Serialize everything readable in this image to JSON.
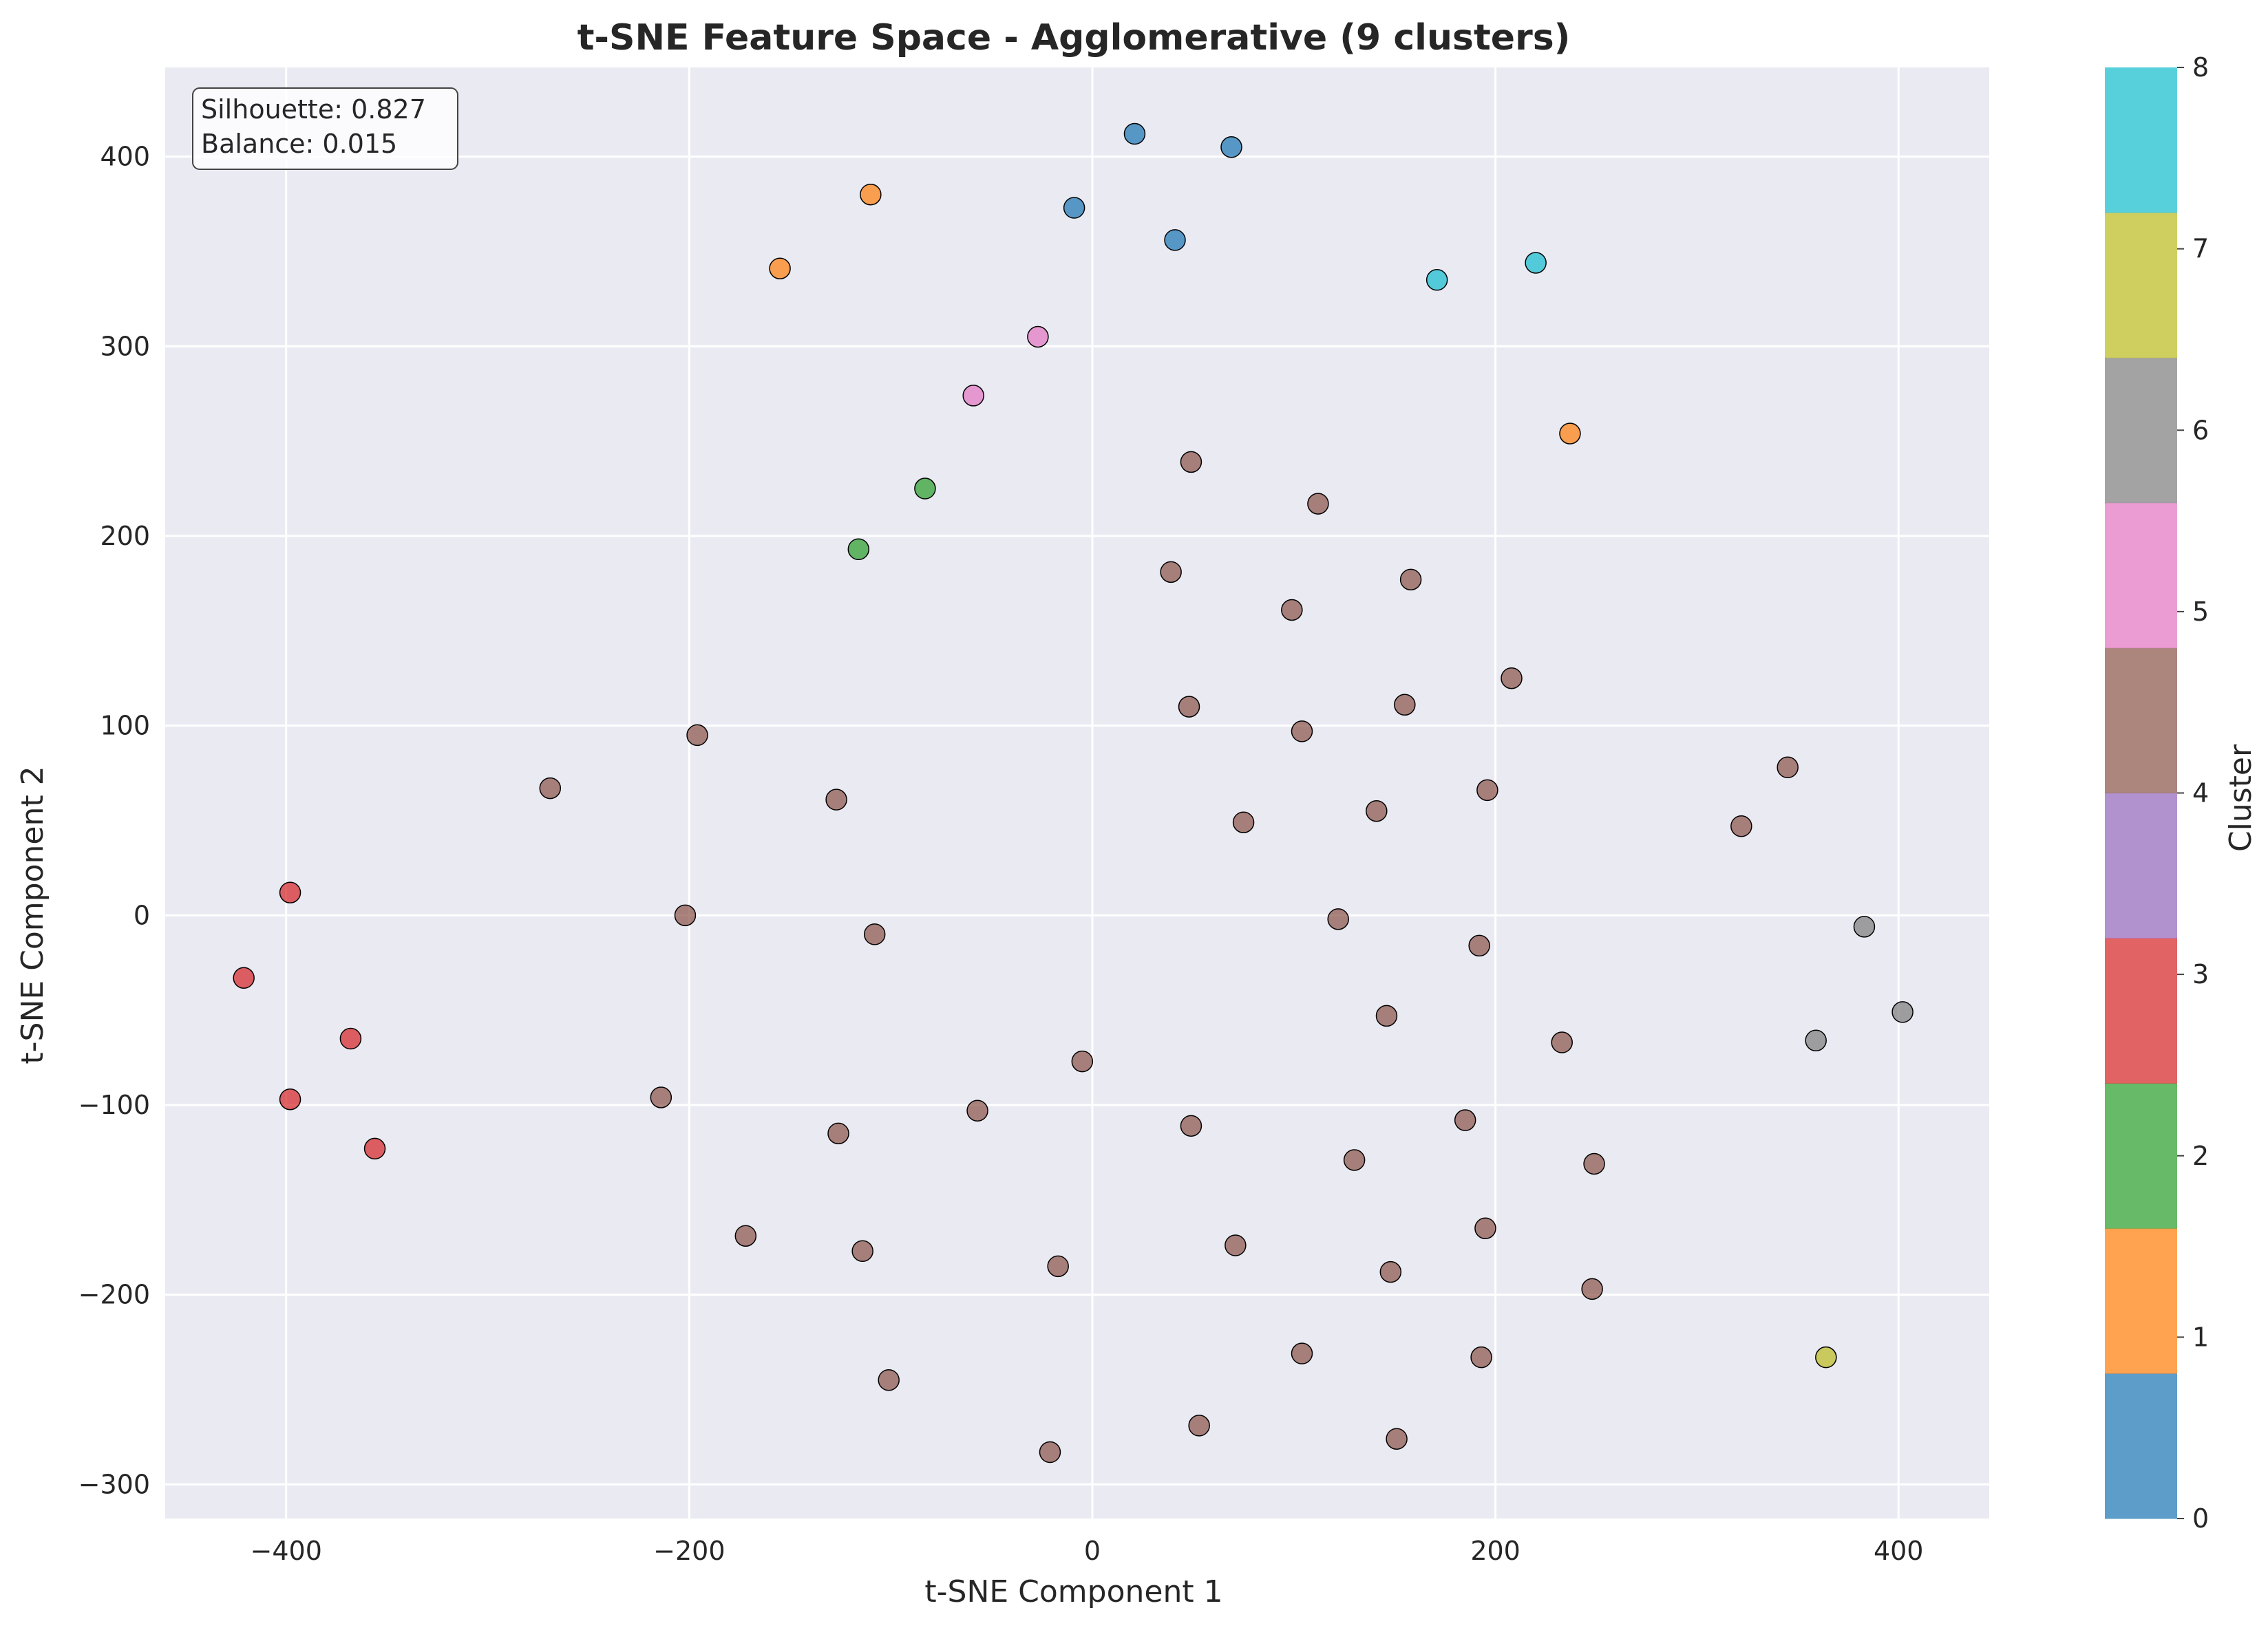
{
  "chart_data": {
    "type": "scatter",
    "title": "t-SNE Feature Space - Agglomerative (9 clusters)",
    "xlabel": "t-SNE Component 1",
    "ylabel": "t-SNE Component 2",
    "xlim": [
      -460,
      445
    ],
    "ylim": [
      -318,
      447
    ],
    "x_ticks": [
      -400,
      -200,
      0,
      200,
      400
    ],
    "y_ticks": [
      -300,
      -200,
      -100,
      0,
      100,
      200,
      300,
      400
    ],
    "grid": true,
    "annotation_lines": [
      "Silhouette: 0.827",
      "Balance: 0.015"
    ],
    "colorbar": {
      "label": "Cluster",
      "ticks": [
        0,
        1,
        2,
        3,
        4,
        5,
        6,
        7,
        8
      ],
      "colors": [
        "#1f77b4",
        "#ff7f0e",
        "#2ca02c",
        "#d62728",
        "#9467bd",
        "#8c564b",
        "#e377c2",
        "#7f7f7f",
        "#bcbd22",
        "#17becf"
      ]
    },
    "points": [
      {
        "x": 21,
        "y": 412,
        "cluster": 0
      },
      {
        "x": 69,
        "y": 405,
        "cluster": 0
      },
      {
        "x": -9,
        "y": 373,
        "cluster": 0
      },
      {
        "x": 41,
        "y": 356,
        "cluster": 0
      },
      {
        "x": -110,
        "y": 380,
        "cluster": 1
      },
      {
        "x": -155,
        "y": 341,
        "cluster": 1
      },
      {
        "x": 237,
        "y": 254,
        "cluster": 1
      },
      {
        "x": -83,
        "y": 225,
        "cluster": 2
      },
      {
        "x": -116,
        "y": 193,
        "cluster": 2
      },
      {
        "x": -398,
        "y": 12,
        "cluster": 3
      },
      {
        "x": -421,
        "y": -33,
        "cluster": 3
      },
      {
        "x": -368,
        "y": -65,
        "cluster": 3
      },
      {
        "x": -398,
        "y": -97,
        "cluster": 3
      },
      {
        "x": -356,
        "y": -123,
        "cluster": 3
      },
      {
        "x": -27,
        "y": 305,
        "cluster": 5
      },
      {
        "x": -59,
        "y": 274,
        "cluster": 5
      },
      {
        "x": 171,
        "y": 335,
        "cluster": 8
      },
      {
        "x": 220,
        "y": 344,
        "cluster": 8
      },
      {
        "x": 383,
        "y": -6,
        "cluster": 6
      },
      {
        "x": 402,
        "y": -51,
        "cluster": 6
      },
      {
        "x": 359,
        "y": -66,
        "cluster": 6
      },
      {
        "x": 364,
        "y": -233,
        "cluster": 7
      },
      {
        "x": 49,
        "y": 239,
        "cluster": 4
      },
      {
        "x": 112,
        "y": 217,
        "cluster": 4
      },
      {
        "x": 39,
        "y": 181,
        "cluster": 4
      },
      {
        "x": 158,
        "y": 177,
        "cluster": 4
      },
      {
        "x": 99,
        "y": 161,
        "cluster": 4
      },
      {
        "x": 208,
        "y": 125,
        "cluster": 4
      },
      {
        "x": 48,
        "y": 110,
        "cluster": 4
      },
      {
        "x": 155,
        "y": 111,
        "cluster": 4
      },
      {
        "x": 104,
        "y": 97,
        "cluster": 4
      },
      {
        "x": -196,
        "y": 95,
        "cluster": 4
      },
      {
        "x": -269,
        "y": 67,
        "cluster": 4
      },
      {
        "x": -127,
        "y": 61,
        "cluster": 4
      },
      {
        "x": 345,
        "y": 78,
        "cluster": 4
      },
      {
        "x": 196,
        "y": 66,
        "cluster": 4
      },
      {
        "x": 141,
        "y": 55,
        "cluster": 4
      },
      {
        "x": 75,
        "y": 49,
        "cluster": 4
      },
      {
        "x": 322,
        "y": 47,
        "cluster": 4
      },
      {
        "x": -202,
        "y": 0,
        "cluster": 4
      },
      {
        "x": 122,
        "y": -2,
        "cluster": 4
      },
      {
        "x": -108,
        "y": -10,
        "cluster": 4
      },
      {
        "x": 192,
        "y": -16,
        "cluster": 4
      },
      {
        "x": 146,
        "y": -53,
        "cluster": 4
      },
      {
        "x": 233,
        "y": -67,
        "cluster": 4
      },
      {
        "x": -5,
        "y": -77,
        "cluster": 4
      },
      {
        "x": -214,
        "y": -96,
        "cluster": 4
      },
      {
        "x": -57,
        "y": -103,
        "cluster": 4
      },
      {
        "x": 185,
        "y": -108,
        "cluster": 4
      },
      {
        "x": 49,
        "y": -111,
        "cluster": 4
      },
      {
        "x": -126,
        "y": -115,
        "cluster": 4
      },
      {
        "x": 130,
        "y": -129,
        "cluster": 4
      },
      {
        "x": 249,
        "y": -131,
        "cluster": 4
      },
      {
        "x": 195,
        "y": -165,
        "cluster": 4
      },
      {
        "x": -172,
        "y": -169,
        "cluster": 4
      },
      {
        "x": 71,
        "y": -174,
        "cluster": 4
      },
      {
        "x": -114,
        "y": -177,
        "cluster": 4
      },
      {
        "x": -17,
        "y": -185,
        "cluster": 4
      },
      {
        "x": 148,
        "y": -188,
        "cluster": 4
      },
      {
        "x": 248,
        "y": -197,
        "cluster": 4
      },
      {
        "x": 104,
        "y": -231,
        "cluster": 4
      },
      {
        "x": 193,
        "y": -233,
        "cluster": 4
      },
      {
        "x": -101,
        "y": -245,
        "cluster": 4
      },
      {
        "x": 53,
        "y": -269,
        "cluster": 4
      },
      {
        "x": 151,
        "y": -276,
        "cluster": 4
      },
      {
        "x": -21,
        "y": -283,
        "cluster": 4
      }
    ]
  }
}
